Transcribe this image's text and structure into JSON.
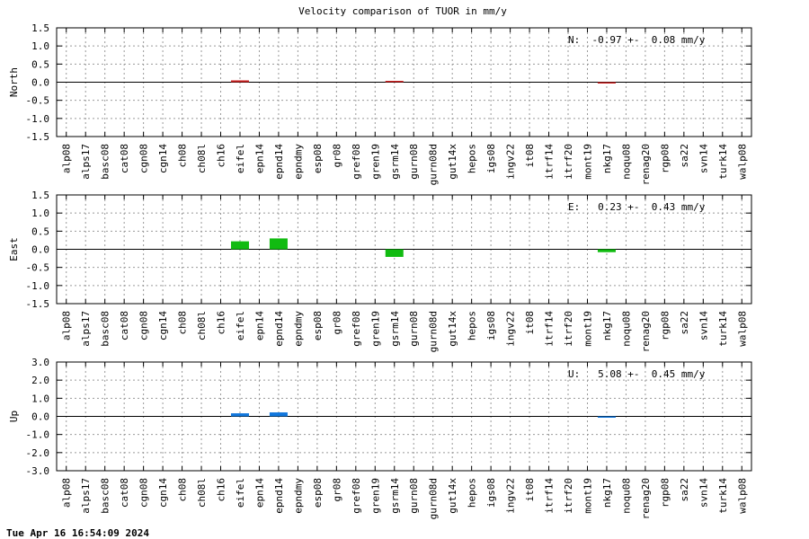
{
  "title": "Velocity comparison of TUOR in mm/y",
  "timestamp": "Tue Apr 16 16:54:09 2024",
  "chart_data": {
    "type": "bar",
    "categories": [
      "alp08",
      "alps17",
      "basc08",
      "cat08",
      "cgn08",
      "cgn14",
      "ch08",
      "ch08l",
      "ch16",
      "eifel",
      "epn14",
      "epnd14",
      "epndmy",
      "esp08",
      "gr08",
      "gref08",
      "gren19",
      "gsrm14",
      "gurn08",
      "gurn08d",
      "gut14x",
      "hepos",
      "igs08",
      "ingv22",
      "it08",
      "itrf14",
      "itrf20",
      "mont19",
      "nkg17",
      "noqu08",
      "renag20",
      "rgp08",
      "sa22",
      "svn14",
      "turk14",
      "walp08"
    ],
    "panels": [
      {
        "name": "North",
        "ylabel": "North",
        "ylim": [
          -1.5,
          1.5
        ],
        "yticks": [
          "1.5",
          "1.0",
          "0.5",
          "0.0",
          "-0.5",
          "-1.0",
          "-1.5"
        ],
        "stats": "N:  -0.97 +-  0.08 mm/y",
        "color": "#cc2222",
        "values": [
          null,
          null,
          null,
          null,
          null,
          null,
          null,
          null,
          null,
          0.05,
          null,
          null,
          null,
          null,
          null,
          null,
          null,
          0.01,
          null,
          null,
          null,
          null,
          null,
          null,
          null,
          null,
          null,
          null,
          -0.02,
          null,
          null,
          null,
          null,
          null,
          null,
          null
        ]
      },
      {
        "name": "East",
        "ylabel": "East",
        "ylim": [
          -1.5,
          1.5
        ],
        "yticks": [
          "1.5",
          "1.0",
          "0.5",
          "0.0",
          "-0.5",
          "-1.0",
          "-1.5"
        ],
        "stats": "E:   0.23 +-  0.43 mm/y",
        "color": "#11bb11",
        "values": [
          null,
          null,
          null,
          null,
          null,
          null,
          null,
          null,
          null,
          0.22,
          null,
          0.3,
          null,
          null,
          null,
          null,
          null,
          -0.21,
          null,
          null,
          null,
          null,
          null,
          null,
          null,
          null,
          null,
          null,
          -0.08,
          null,
          null,
          null,
          null,
          null,
          null,
          null
        ]
      },
      {
        "name": "Up",
        "ylabel": "Up",
        "ylim": [
          -3.0,
          3.0
        ],
        "yticks": [
          "3.0",
          "2.0",
          "1.0",
          "0.0",
          "-1.0",
          "-2.0",
          "-3.0"
        ],
        "stats": "U:   5.08 +-  0.45 mm/y",
        "color": "#1177dd",
        "values": [
          null,
          null,
          null,
          null,
          null,
          null,
          null,
          null,
          null,
          0.17,
          null,
          0.22,
          null,
          null,
          null,
          null,
          null,
          null,
          null,
          null,
          null,
          null,
          null,
          null,
          null,
          null,
          null,
          null,
          -0.04,
          null,
          null,
          null,
          null,
          null,
          null,
          null
        ]
      }
    ],
    "grid": true
  }
}
